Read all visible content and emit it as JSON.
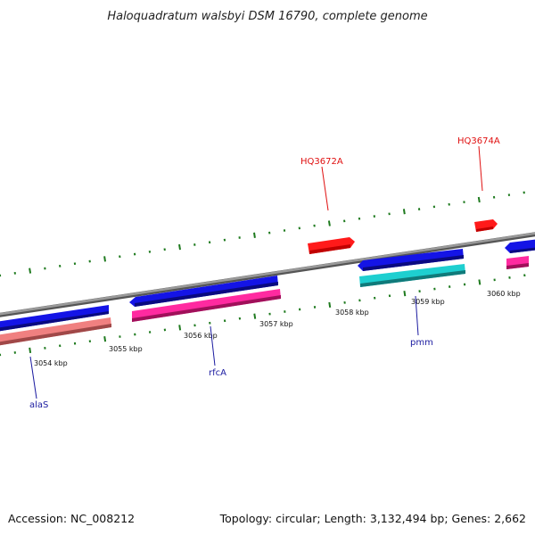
{
  "title": "Haloquadratum walsbyi DSM 16790, complete genome",
  "footer": {
    "accession": "Accession: NC_008212",
    "stats": "Topology: circular; Length: 3,132,494 bp; Genes: 2,662"
  },
  "colors": {
    "backbone": "#7f7f7f",
    "cds_forward": "#1414e6",
    "cds_reverse": "#ff2aa0",
    "rrna": "#f08080",
    "misc_cyan": "#1ecfd0",
    "trna_red": "#ff1a1a",
    "tick": "#1e7a1e",
    "label_blue": "#1a1aa0",
    "label_red": "#e01010"
  },
  "ruler": {
    "labels": [
      "3054 kbp",
      "3055 kbp",
      "3056 kbp",
      "3057 kbp",
      "3058 kbp",
      "3059 kbp",
      "3060 kbp"
    ]
  },
  "genes": [
    {
      "name": "alaS",
      "color": "label_blue"
    },
    {
      "name": "rfcA",
      "color": "label_blue"
    },
    {
      "name": "pmm",
      "color": "label_blue"
    },
    {
      "name": "HQ3672A",
      "color": "label_red"
    },
    {
      "name": "HQ3674A",
      "color": "label_red"
    }
  ]
}
